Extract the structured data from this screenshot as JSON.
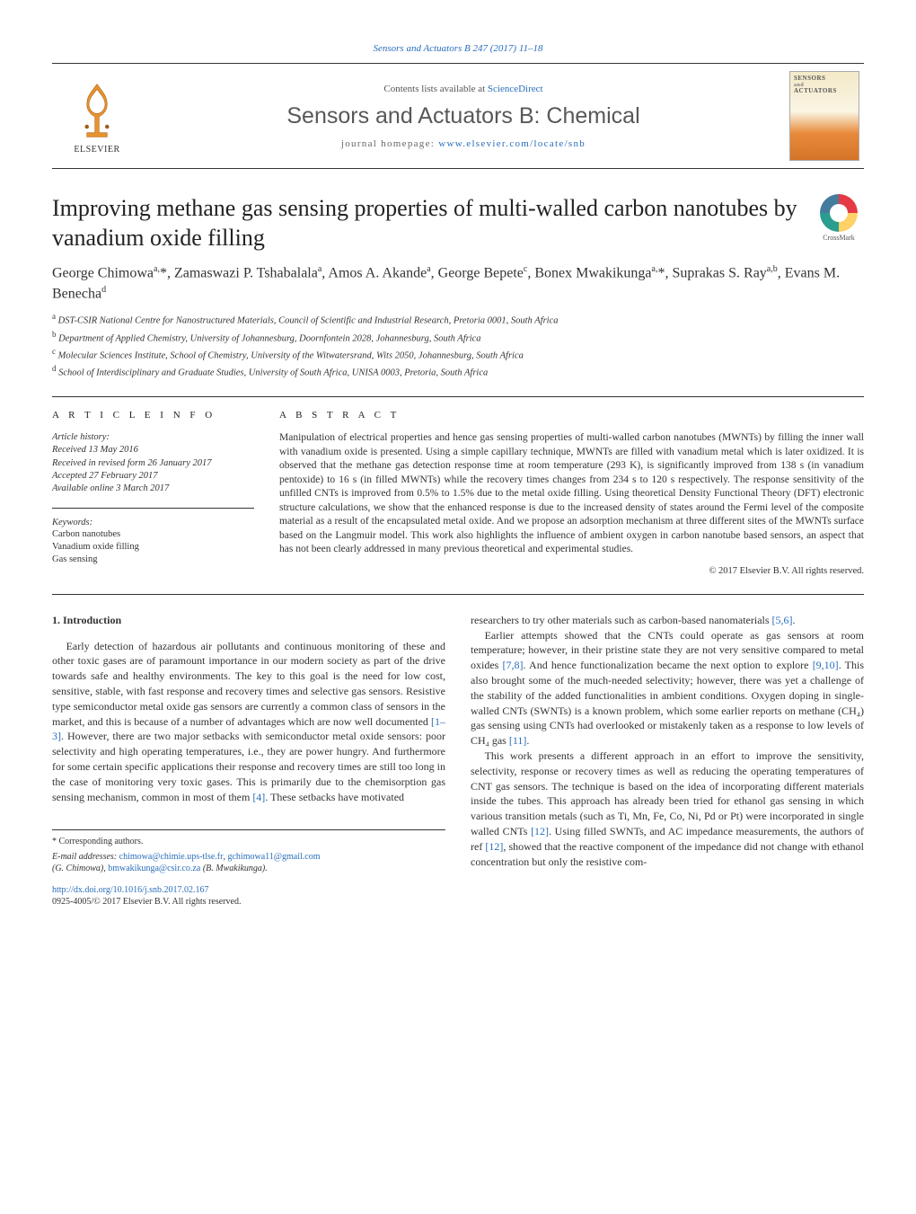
{
  "journal_ref": "Sensors and Actuators B 247 (2017) 11–18",
  "header": {
    "contents_line_pre": "Contents lists available at ",
    "contents_line_link": "ScienceDirect",
    "journal_title": "Sensors and Actuators B: Chemical",
    "homepage_label": "journal homepage: ",
    "homepage_url": "www.elsevier.com/locate/snb",
    "elsevier_text": "ELSEVIER",
    "cover_text_line1": "SENSORS",
    "cover_text_line2": "ACTUATORS"
  },
  "crossmark_label": "CrossMark",
  "title": "Improving methane gas sensing properties of multi-walled carbon nanotubes by vanadium oxide filling",
  "authors_html": "George Chimowa<sup>a,</sup>*, Zamaswazi P. Tshabalala<sup>a</sup>, Amos A. Akande<sup>a</sup>, George Bepete<sup>c</sup>, Bonex Mwakikunga<sup>a,</sup>*, Suprakas S. Ray<sup>a,b</sup>, Evans M. Benecha<sup>d</sup>",
  "affiliations": [
    {
      "sup": "a",
      "text": "DST-CSIR National Centre for Nanostructured Materials, Council of Scientific and Industrial Research, Pretoria 0001, South Africa"
    },
    {
      "sup": "b",
      "text": "Department of Applied Chemistry, University of Johannesburg, Doornfontein 2028, Johannesburg, South Africa"
    },
    {
      "sup": "c",
      "text": "Molecular Sciences Institute, School of Chemistry, University of the Witwatersrand, Wits 2050, Johannesburg, South Africa"
    },
    {
      "sup": "d",
      "text": "School of Interdisciplinary and Graduate Studies, University of South Africa, UNISA 0003, Pretoria, South Africa"
    }
  ],
  "article_info": {
    "heading": "a r t i c l e   i n f o",
    "history_label": "Article history:",
    "history": [
      "Received 13 May 2016",
      "Received in revised form 26 January 2017",
      "Accepted 27 February 2017",
      "Available online 3 March 2017"
    ],
    "keywords_label": "Keywords:",
    "keywords": [
      "Carbon nanotubes",
      "Vanadium oxide filling",
      "Gas sensing"
    ]
  },
  "abstract": {
    "heading": "a b s t r a c t",
    "text": "Manipulation of electrical properties and hence gas sensing properties of multi-walled carbon nanotubes (MWNTs) by filling the inner wall with vanadium oxide is presented. Using a simple capillary technique, MWNTs are filled with vanadium metal which is later oxidized. It is observed that the methane gas detection response time at room temperature (293 K), is significantly improved from 138 s (in vanadium pentoxide) to 16 s (in filled MWNTs) while the recovery times changes from 234 s to 120 s respectively. The response sensitivity of the unfilled CNTs is improved from 0.5% to 1.5% due to the metal oxide filling. Using theoretical Density Functional Theory (DFT) electronic structure calculations, we show that the enhanced response is due to the increased density of states around the Fermi level of the composite material as a result of the encapsulated metal oxide. And we propose an adsorption mechanism at three different sites of the MWNTs surface based on the Langmuir model. This work also highlights the influence of ambient oxygen in carbon nanotube based sensors, an aspect that has not been clearly addressed in many previous theoretical and experimental studies.",
    "copyright": "© 2017 Elsevier B.V. All rights reserved."
  },
  "section1_heading": "1. Introduction",
  "body": {
    "col1": [
      "Early detection of hazardous air pollutants and continuous monitoring of these and other toxic gases are of paramount importance in our modern society as part of the drive towards safe and healthy environments. The key to this goal is the need for low cost, sensitive, stable, with fast response and recovery times and selective gas sensors. Resistive type semiconductor metal oxide gas sensors are currently a common class of sensors in the market, and this is because of a number of advantages which are now well documented [1–3]. However, there are two major setbacks with semiconductor metal oxide sensors: poor selectivity and high operating temperatures, i.e., they are power hungry. And furthermore for some certain specific applications their response and recovery times are still too long in the case of monitoring very toxic gases. This is primarily due to the chemisorption gas sensing mechanism, common in most of them [4]. These setbacks have motivated"
    ],
    "col2": [
      "researchers to try other materials such as carbon-based nanomaterials [5,6].",
      "Earlier attempts showed that the CNTs could operate as gas sensors at room temperature; however, in their pristine state they are not very sensitive compared to metal oxides [7,8]. And hence functionalization became the next option to explore [9,10]. This also brought some of the much-needed selectivity; however, there was yet a challenge of the stability of the added functionalities in ambient conditions. Oxygen doping in single-walled CNTs (SWNTs) is a known problem, which some earlier reports on methane (CH₄) gas sensing using CNTs had overlooked or mistakenly taken as a response to low levels of CH₄ gas [11].",
      "This work presents a different approach in an effort to improve the sensitivity, selectivity, response or recovery times as well as reducing the operating temperatures of CNT gas sensors. The technique is based on the idea of incorporating different materials inside the tubes. This approach has already been tried for ethanol gas sensing in which various transition metals (such as Ti, Mn, Fe, Co, Ni, Pd or Pt) were incorporated in single walled CNTs [12]. Using filled SWNTs, and AC impedance measurements, the authors of ref [12], showed that the reactive component of the impedance did not change with ethanol concentration but only the resistive com-"
    ]
  },
  "citations": {
    "c1_3": "[1–3]",
    "c4": "[4]",
    "c5_6": "[5,6]",
    "c7_8": "[7,8]",
    "c9_10": "[9,10]",
    "c11": "[11]",
    "c12a": "[12]",
    "c12b": "[12]"
  },
  "footer": {
    "corr": "* Corresponding authors.",
    "emails_label": "E-mail addresses: ",
    "emails": [
      {
        "addr": "chimowa@chimie.ups-tlse.fr",
        "who": ""
      },
      {
        "addr": "gchimowa11@gmail.com",
        "who": "(G. Chimowa), "
      },
      {
        "addr": "bmwakikunga@csir.co.za",
        "who": "(B. Mwakikunga)."
      }
    ],
    "doi": "http://dx.doi.org/10.1016/j.snb.2017.02.167",
    "issn": "0925-4005/© 2017 Elsevier B.V. All rights reserved."
  },
  "colors": {
    "link": "#2a6ebb",
    "text": "#333333",
    "rule": "#333333"
  }
}
